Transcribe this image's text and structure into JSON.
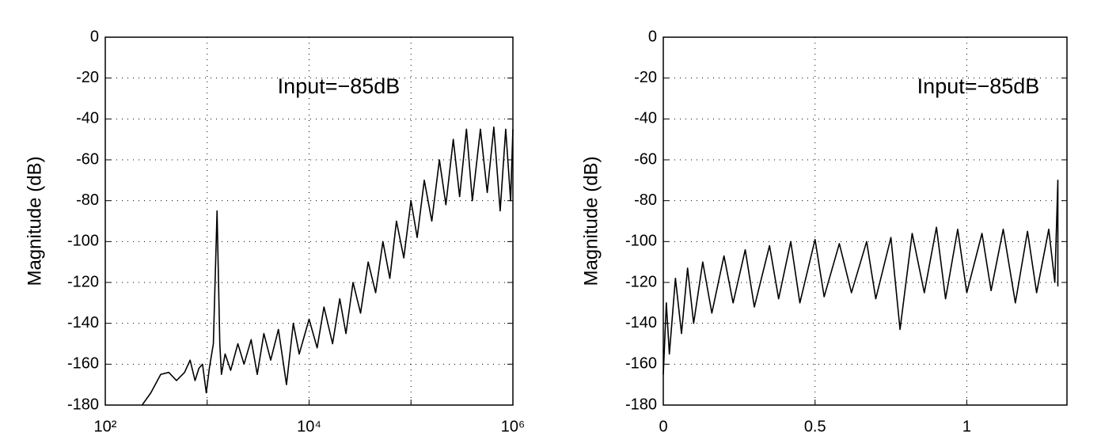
{
  "chart_data": [
    {
      "type": "line",
      "y_label": "Magnitude (dB)",
      "annotation": "Input=−85dB",
      "xscale": "log",
      "xlim": [
        100,
        1000000
      ],
      "ylim": [
        -180,
        0
      ],
      "xticks": [
        {
          "value": 100,
          "label": "10²"
        },
        {
          "value": 10000,
          "label": "10⁴"
        },
        {
          "value": 1000000,
          "label": "10⁶"
        }
      ],
      "xgrid": [
        1000,
        100000
      ],
      "yticks": [
        0,
        -20,
        -40,
        -60,
        -80,
        -100,
        -120,
        -140,
        -160,
        -180
      ],
      "grid": true,
      "series": [
        {
          "color": "#000000",
          "x": [
            230,
            280,
            350,
            420,
            500,
            600,
            680,
            760,
            830,
            900,
            980,
            1050,
            1150,
            1250,
            1330,
            1380,
            1500,
            1700,
            2000,
            2300,
            2700,
            3100,
            3600,
            4200,
            5000,
            6000,
            7000,
            8000,
            10000,
            12000,
            14000,
            17000,
            20000,
            23000,
            27000,
            32000,
            38000,
            45000,
            53000,
            62000,
            72000,
            85000,
            100000,
            115000,
            135000,
            160000,
            190000,
            220000,
            260000,
            300000,
            350000,
            400000,
            480000,
            560000,
            650000,
            750000,
            850000,
            950000,
            1000000
          ],
          "values": [
            -180,
            -174,
            -165,
            -164,
            -168,
            -164,
            -158,
            -168,
            -162,
            -160,
            -174,
            -162,
            -150,
            -85,
            -150,
            -165,
            -155,
            -163,
            -150,
            -160,
            -148,
            -165,
            -145,
            -158,
            -143,
            -170,
            -140,
            -155,
            -138,
            -152,
            -132,
            -150,
            -128,
            -145,
            -120,
            -135,
            -110,
            -125,
            -100,
            -118,
            -90,
            -108,
            -80,
            -98,
            -70,
            -90,
            -60,
            -82,
            -50,
            -78,
            -45,
            -80,
            -45,
            -76,
            -44,
            -85,
            -45,
            -80,
            -45
          ]
        }
      ]
    },
    {
      "type": "line",
      "y_label": "Magnitude (dB)",
      "annotation": "Input=−85dB",
      "xscale": "linear",
      "xlim": [
        0,
        1.33
      ],
      "ylim": [
        -180,
        0
      ],
      "xticks": [
        0,
        0.5,
        1
      ],
      "yticks": [
        0,
        -20,
        -40,
        -60,
        -80,
        -100,
        -120,
        -140,
        -160,
        -180
      ],
      "grid": true,
      "series": [
        {
          "color": "#000000",
          "x": [
            0,
            0.01,
            0.02,
            0.04,
            0.06,
            0.08,
            0.1,
            0.13,
            0.16,
            0.2,
            0.23,
            0.27,
            0.3,
            0.35,
            0.38,
            0.42,
            0.45,
            0.5,
            0.53,
            0.58,
            0.62,
            0.67,
            0.7,
            0.75,
            0.78,
            0.82,
            0.86,
            0.9,
            0.93,
            0.97,
            1.0,
            1.05,
            1.08,
            1.12,
            1.16,
            1.2,
            1.23,
            1.27,
            1.29,
            1.3,
            1.3
          ],
          "values": [
            -165,
            -130,
            -155,
            -118,
            -145,
            -113,
            -140,
            -110,
            -135,
            -107,
            -130,
            -104,
            -132,
            -102,
            -128,
            -100,
            -130,
            -99,
            -127,
            -101,
            -125,
            -100,
            -128,
            -98,
            -143,
            -96,
            -125,
            -93,
            -128,
            -94,
            -125,
            -96,
            -124,
            -94,
            -130,
            -95,
            -125,
            -94,
            -120,
            -70,
            -122
          ]
        }
      ]
    }
  ]
}
